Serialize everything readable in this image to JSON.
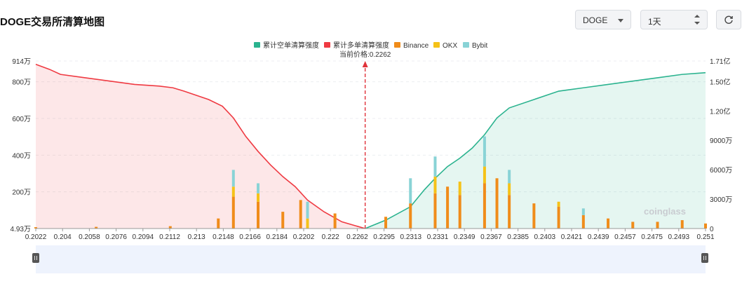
{
  "header": {
    "title": "DOGE交易所清算地图",
    "symbol_select": "DOGE",
    "range_select": "1天"
  },
  "watermark": "coinglass",
  "colors": {
    "short_cum": "#2bb38f",
    "long_cum": "#ef3a42",
    "binance": "#f08c1a",
    "okx": "#f5c218",
    "bybit": "#89d3d6"
  },
  "chart_data": {
    "type": "bar",
    "legend": [
      "累计空单清算强度",
      "累计多单清算强度",
      "Binance",
      "OKX",
      "Bybit"
    ],
    "legend_placement": "top-center",
    "current_price_label": "当前价格:0.2262",
    "current_price": 0.2262,
    "x_range": [
      0.2022,
      0.251
    ],
    "x_ticks": [
      "0.2022",
      "0.204",
      "0.2058",
      "0.2076",
      "0.2094",
      "0.2112",
      "0.213",
      "0.2148",
      "0.2166",
      "0.2184",
      "0.2202",
      "0.222",
      "0.2262",
      "0.2295",
      "0.2313",
      "0.2331",
      "0.2349",
      "0.2367",
      "0.2385",
      "0.2403",
      "0.2421",
      "0.2439",
      "0.2457",
      "0.2475",
      "0.2493",
      "0.251"
    ],
    "y_left_ticks": [
      "4.93万",
      "200万",
      "400万",
      "600万",
      "800万",
      "914万"
    ],
    "y_left_range": [
      0,
      9140000
    ],
    "y_right_ticks": [
      "0",
      "3000万",
      "6000万",
      "9000万",
      "1.20亿",
      "1.50亿",
      "1.71亿"
    ],
    "y_right_range": [
      0,
      171000000
    ],
    "cumulative_long": [
      [
        0.2022,
        0.98
      ],
      [
        0.2032,
        0.95
      ],
      [
        0.204,
        0.92
      ],
      [
        0.2058,
        0.9
      ],
      [
        0.2076,
        0.88
      ],
      [
        0.2094,
        0.86
      ],
      [
        0.2112,
        0.85
      ],
      [
        0.2122,
        0.84
      ],
      [
        0.213,
        0.82
      ],
      [
        0.2148,
        0.77
      ],
      [
        0.2158,
        0.73
      ],
      [
        0.2166,
        0.66
      ],
      [
        0.2175,
        0.55
      ],
      [
        0.2184,
        0.46
      ],
      [
        0.2193,
        0.38
      ],
      [
        0.2202,
        0.31
      ],
      [
        0.2211,
        0.25
      ],
      [
        0.222,
        0.17
      ],
      [
        0.2232,
        0.1
      ],
      [
        0.2245,
        0.04
      ],
      [
        0.2262,
        0
      ]
    ],
    "cumulative_short": [
      [
        0.2262,
        0
      ],
      [
        0.2277,
        0.05
      ],
      [
        0.2295,
        0.13
      ],
      [
        0.2305,
        0.23
      ],
      [
        0.2313,
        0.3
      ],
      [
        0.2322,
        0.37
      ],
      [
        0.2331,
        0.42
      ],
      [
        0.234,
        0.48
      ],
      [
        0.2349,
        0.56
      ],
      [
        0.2358,
        0.66
      ],
      [
        0.2367,
        0.72
      ],
      [
        0.2385,
        0.77
      ],
      [
        0.2403,
        0.82
      ],
      [
        0.2421,
        0.84
      ],
      [
        0.2439,
        0.86
      ],
      [
        0.2457,
        0.88
      ],
      [
        0.2475,
        0.9
      ],
      [
        0.2493,
        0.92
      ],
      [
        0.251,
        0.93
      ]
    ],
    "bars_binance": [
      [
        0.2022,
        0.008
      ],
      [
        0.2066,
        0.01
      ],
      [
        0.212,
        0.014
      ],
      [
        0.2155,
        0.06
      ],
      [
        0.2166,
        0.19
      ],
      [
        0.2184,
        0.16
      ],
      [
        0.2202,
        0.1
      ],
      [
        0.2215,
        0.17
      ],
      [
        0.224,
        0.09
      ],
      [
        0.2277,
        0.07
      ],
      [
        0.2295,
        0.15
      ],
      [
        0.2313,
        0.21
      ],
      [
        0.2322,
        0.25
      ],
      [
        0.2331,
        0.2
      ],
      [
        0.2349,
        0.27
      ],
      [
        0.2358,
        0.3
      ],
      [
        0.2367,
        0.2
      ],
      [
        0.2385,
        0.15
      ],
      [
        0.2403,
        0.13
      ],
      [
        0.2421,
        0.08
      ],
      [
        0.2439,
        0.06
      ],
      [
        0.2457,
        0.04
      ],
      [
        0.2475,
        0.04
      ],
      [
        0.2493,
        0.05
      ],
      [
        0.251,
        0.03
      ]
    ],
    "bars_okx": [
      [
        0.2166,
        0.06
      ],
      [
        0.2184,
        0.05
      ],
      [
        0.222,
        0.06
      ],
      [
        0.2313,
        0.1
      ],
      [
        0.2331,
        0.08
      ],
      [
        0.2349,
        0.1
      ],
      [
        0.2367,
        0.07
      ],
      [
        0.2403,
        0.03
      ]
    ],
    "bars_bybit": [
      [
        0.2166,
        0.1
      ],
      [
        0.2184,
        0.06
      ],
      [
        0.222,
        0.1
      ],
      [
        0.2295,
        0.15
      ],
      [
        0.2313,
        0.12
      ],
      [
        0.2349,
        0.18
      ],
      [
        0.2367,
        0.08
      ],
      [
        0.2421,
        0.04
      ]
    ]
  }
}
